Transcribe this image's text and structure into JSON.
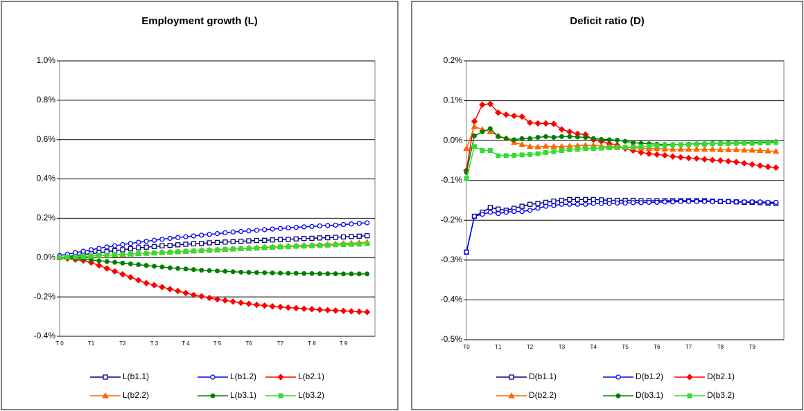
{
  "chart_data": [
    {
      "type": "line",
      "title": "Employment growth (L)",
      "categories": [
        "T 0",
        null,
        null,
        null,
        "T1",
        null,
        null,
        null,
        "T2",
        null,
        null,
        null,
        "T 3",
        null,
        null,
        null,
        "T 4",
        null,
        null,
        null,
        "T 5",
        null,
        null,
        null,
        "T6",
        null,
        null,
        null,
        "T7",
        null,
        null,
        null,
        "T 8",
        null,
        null,
        null,
        "T 9",
        null,
        null,
        null
      ],
      "ylim": [
        -0.4,
        1.0
      ],
      "yticks": [
        {
          "value": -0.4,
          "label": "-0.4%"
        },
        {
          "value": -0.2,
          "label": "-0.2%"
        },
        {
          "value": 0.0,
          "label": "0.0%"
        },
        {
          "value": 0.2,
          "label": "0.2%"
        },
        {
          "value": 0.4,
          "label": "0.4%"
        },
        {
          "value": 0.6,
          "label": "0.6%"
        },
        {
          "value": 0.8,
          "label": "0.8%"
        },
        {
          "value": 1.0,
          "label": "1.0%"
        }
      ],
      "grid": true,
      "legend": "bottom",
      "series": [
        {
          "name": "L(b1.1)",
          "color": "#000080",
          "marker": "square-open",
          "values": [
            0,
            0.005,
            0.01,
            0.015,
            0.02,
            0.025,
            0.03,
            0.035,
            0.04,
            0.045,
            0.05,
            0.053,
            0.056,
            0.06,
            0.062,
            0.065,
            0.068,
            0.07,
            0.072,
            0.075,
            0.077,
            0.079,
            0.081,
            0.083,
            0.085,
            0.087,
            0.088,
            0.09,
            0.092,
            0.093,
            0.095,
            0.097,
            0.098,
            0.1,
            0.101,
            0.103,
            0.105,
            0.107,
            0.109,
            0.111
          ]
        },
        {
          "name": "L(b1.2)",
          "color": "#0000ff",
          "marker": "circle-open",
          "values": [
            0.01,
            0.017,
            0.025,
            0.032,
            0.04,
            0.047,
            0.054,
            0.06,
            0.066,
            0.072,
            0.078,
            0.083,
            0.088,
            0.093,
            0.098,
            0.102,
            0.106,
            0.11,
            0.114,
            0.118,
            0.122,
            0.126,
            0.13,
            0.133,
            0.136,
            0.139,
            0.142,
            0.145,
            0.148,
            0.151,
            0.154,
            0.156,
            0.158,
            0.161,
            0.163,
            0.165,
            0.168,
            0.171,
            0.174,
            0.177
          ]
        },
        {
          "name": "L(b2.1)",
          "color": "#ff0000",
          "marker": "diamond",
          "values": [
            0,
            -0.005,
            -0.01,
            -0.015,
            -0.025,
            -0.04,
            -0.055,
            -0.07,
            -0.085,
            -0.1,
            -0.115,
            -0.13,
            -0.14,
            -0.15,
            -0.16,
            -0.17,
            -0.18,
            -0.19,
            -0.197,
            -0.205,
            -0.212,
            -0.218,
            -0.224,
            -0.23,
            -0.235,
            -0.24,
            -0.244,
            -0.248,
            -0.251,
            -0.254,
            -0.257,
            -0.26,
            -0.262,
            -0.265,
            -0.267,
            -0.269,
            -0.271,
            -0.273,
            -0.275,
            -0.277
          ]
        },
        {
          "name": "L(b2.2)",
          "color": "#ff6600",
          "marker": "triangle",
          "values": [
            0,
            0.002,
            0.004,
            0.006,
            0.008,
            0.01,
            0.012,
            0.014,
            0.016,
            0.018,
            0.02,
            0.022,
            0.024,
            0.026,
            0.028,
            0.03,
            0.032,
            0.034,
            0.036,
            0.038,
            0.04,
            0.042,
            0.044,
            0.046,
            0.048,
            0.05,
            0.052,
            0.054,
            0.056,
            0.058,
            0.06,
            0.062,
            0.063,
            0.065,
            0.067,
            0.069,
            0.071,
            0.073,
            0.075,
            0.078
          ]
        },
        {
          "name": "L(b3.1)",
          "color": "#008000",
          "marker": "circle",
          "values": [
            0,
            -0.002,
            -0.005,
            -0.008,
            -0.012,
            -0.016,
            -0.02,
            -0.024,
            -0.028,
            -0.032,
            -0.036,
            -0.04,
            -0.044,
            -0.048,
            -0.052,
            -0.055,
            -0.058,
            -0.061,
            -0.064,
            -0.066,
            -0.068,
            -0.07,
            -0.072,
            -0.074,
            -0.075,
            -0.076,
            -0.077,
            -0.078,
            -0.079,
            -0.08,
            -0.08,
            -0.081,
            -0.081,
            -0.082,
            -0.082,
            -0.082,
            -0.083,
            -0.083,
            -0.083,
            -0.083
          ]
        },
        {
          "name": "L(b3.2)",
          "color": "#33dd33",
          "marker": "square",
          "values": [
            0,
            0.002,
            0.004,
            0.006,
            0.008,
            0.01,
            0.012,
            0.014,
            0.016,
            0.018,
            0.02,
            0.021,
            0.023,
            0.025,
            0.027,
            0.029,
            0.031,
            0.033,
            0.035,
            0.037,
            0.039,
            0.041,
            0.043,
            0.045,
            0.046,
            0.048,
            0.05,
            0.052,
            0.054,
            0.055,
            0.057,
            0.058,
            0.06,
            0.062,
            0.063,
            0.065,
            0.066,
            0.067,
            0.068,
            0.07
          ]
        }
      ]
    },
    {
      "type": "line",
      "title": "Deficit ratio (D)",
      "categories": [
        "T0",
        null,
        null,
        null,
        "T1",
        null,
        null,
        null,
        "T2",
        null,
        null,
        null,
        "T3",
        null,
        null,
        null,
        "T4",
        null,
        null,
        null,
        "T5",
        null,
        null,
        null,
        "T6",
        null,
        null,
        null,
        "T7",
        null,
        null,
        null,
        "T8",
        null,
        null,
        null,
        "T9",
        null,
        null,
        null
      ],
      "ylim": [
        -0.5,
        0.2
      ],
      "yticks": [
        {
          "value": -0.5,
          "label": "-0.5%"
        },
        {
          "value": -0.4,
          "label": "-0.4%"
        },
        {
          "value": -0.3,
          "label": "-0.3%"
        },
        {
          "value": -0.2,
          "label": "-0.2%"
        },
        {
          "value": -0.1,
          "label": "-0.1%"
        },
        {
          "value": 0.0,
          "label": "0.0%"
        },
        {
          "value": 0.1,
          "label": "0.1%"
        },
        {
          "value": 0.2,
          "label": "0.2%"
        }
      ],
      "grid": true,
      "legend": "bottom",
      "series": [
        {
          "name": "D(b1.1)",
          "color": "#000080",
          "marker": "square-open",
          "values": [
            -0.28,
            -0.19,
            -0.18,
            -0.168,
            -0.172,
            -0.175,
            -0.17,
            -0.165,
            -0.16,
            -0.158,
            -0.155,
            -0.152,
            -0.15,
            -0.148,
            -0.148,
            -0.148,
            -0.148,
            -0.149,
            -0.15,
            -0.15,
            -0.15,
            -0.15,
            -0.151,
            -0.151,
            -0.151,
            -0.151,
            -0.151,
            -0.151,
            -0.151,
            -0.151,
            -0.151,
            -0.152,
            -0.153,
            -0.153,
            -0.154,
            -0.155,
            -0.155,
            -0.156,
            -0.157,
            -0.158
          ]
        },
        {
          "name": "D(b1.2)",
          "color": "#0000ff",
          "marker": "circle-open",
          "values": [
            -0.28,
            -0.19,
            -0.185,
            -0.18,
            -0.183,
            -0.18,
            -0.178,
            -0.178,
            -0.175,
            -0.17,
            -0.165,
            -0.163,
            -0.16,
            -0.16,
            -0.16,
            -0.16,
            -0.158,
            -0.158,
            -0.158,
            -0.157,
            -0.157,
            -0.156,
            -0.156,
            -0.155,
            -0.155,
            -0.154,
            -0.154,
            -0.153,
            -0.153,
            -0.153,
            -0.153,
            -0.153,
            -0.153,
            -0.153,
            -0.154,
            -0.154,
            -0.154,
            -0.154,
            -0.155,
            -0.155
          ]
        },
        {
          "name": "D(b2.1)",
          "color": "#ff0000",
          "marker": "diamond",
          "values": [
            -0.075,
            0.048,
            0.09,
            0.092,
            0.07,
            0.065,
            0.062,
            0.06,
            0.045,
            0.043,
            0.043,
            0.042,
            0.028,
            0.022,
            0.017,
            0.015,
            0.002,
            -0.002,
            -0.008,
            -0.012,
            -0.02,
            -0.025,
            -0.03,
            -0.033,
            -0.035,
            -0.037,
            -0.04,
            -0.042,
            -0.044,
            -0.045,
            -0.047,
            -0.049,
            -0.05,
            -0.052,
            -0.054,
            -0.057,
            -0.06,
            -0.063,
            -0.066,
            -0.068
          ]
        },
        {
          "name": "D(b2.2)",
          "color": "#ff6600",
          "marker": "triangle",
          "values": [
            -0.02,
            0.035,
            0.028,
            0.022,
            0.012,
            0.005,
            -0.005,
            -0.01,
            -0.015,
            -0.016,
            -0.014,
            -0.015,
            -0.015,
            -0.014,
            -0.013,
            -0.012,
            -0.012,
            -0.014,
            -0.015,
            -0.016,
            -0.017,
            -0.018,
            -0.019,
            -0.02,
            -0.02,
            -0.021,
            -0.022,
            -0.022,
            -0.022,
            -0.022,
            -0.022,
            -0.022,
            -0.023,
            -0.023,
            -0.023,
            -0.024,
            -0.024,
            -0.025,
            -0.026,
            -0.027
          ]
        },
        {
          "name": "D(b3.1)",
          "color": "#008000",
          "marker": "circle",
          "values": [
            -0.08,
            0.012,
            0.022,
            0.03,
            0.01,
            0.005,
            0.002,
            0.005,
            0.005,
            0.008,
            0.01,
            0.008,
            0.01,
            0.01,
            0.009,
            0.008,
            0.005,
            0.003,
            0.002,
            0.001,
            -0.002,
            -0.005,
            -0.007,
            -0.008,
            -0.009,
            -0.01,
            -0.01,
            -0.01,
            -0.009,
            -0.008,
            -0.008,
            -0.007,
            -0.007,
            -0.006,
            -0.006,
            -0.005,
            -0.005,
            -0.004,
            -0.004,
            -0.003
          ]
        },
        {
          "name": "D(b3.2)",
          "color": "#33dd33",
          "marker": "square",
          "values": [
            -0.095,
            -0.015,
            -0.025,
            -0.025,
            -0.038,
            -0.038,
            -0.037,
            -0.036,
            -0.035,
            -0.033,
            -0.03,
            -0.028,
            -0.025,
            -0.023,
            -0.022,
            -0.02,
            -0.02,
            -0.019,
            -0.018,
            -0.018,
            -0.017,
            -0.016,
            -0.015,
            -0.014,
            -0.013,
            -0.012,
            -0.011,
            -0.01,
            -0.01,
            -0.009,
            -0.009,
            -0.008,
            -0.008,
            -0.008,
            -0.007,
            -0.007,
            -0.007,
            -0.006,
            -0.006,
            -0.005
          ]
        }
      ]
    }
  ]
}
